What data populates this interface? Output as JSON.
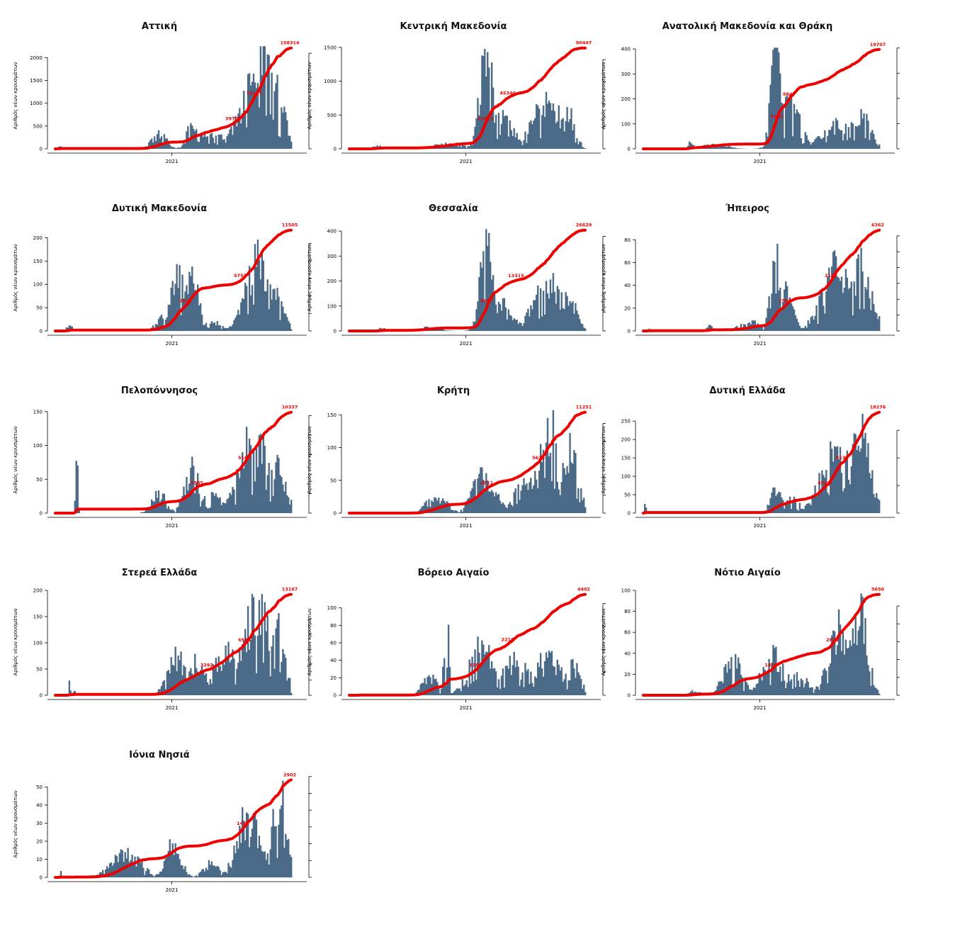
{
  "colors": {
    "bars": "#4a6a88",
    "line": "#ee0000",
    "label": "#ee0000",
    "axis": "#000000"
  },
  "y_left_label": "Αριθμός νέων κρουσμάτων",
  "x_tick_label": "2021",
  "chart_data": [
    {
      "type": "bar",
      "title": "Αττική",
      "cumulative_max": 158314,
      "mid_labels": [
        "39702",
        "79157"
      ],
      "bar_ylim": [
        0,
        2300
      ],
      "bar_yticks": [
        0,
        500,
        1000,
        1500,
        2000
      ],
      "line_yticks": [
        0,
        50000,
        100000,
        150000
      ],
      "shape": "attiki",
      "bar_peak": 2250
    },
    {
      "type": "bar",
      "title": "Κεντρική Μακεδονία",
      "cumulative_max": 90447,
      "mid_labels": [
        "22612",
        "45340"
      ],
      "bar_ylim": [
        0,
        1550
      ],
      "bar_yticks": [
        0,
        500,
        1000,
        1500
      ],
      "line_yticks": [
        0,
        20000,
        40000,
        60000,
        80000
      ],
      "shape": "kmak",
      "bar_peak": 1520
    },
    {
      "type": "bar",
      "title": "Ανατολική Μακεδονία και Θράκη",
      "cumulative_max": 19707,
      "mid_labels": [
        "5419",
        "9847"
      ],
      "bar_ylim": [
        0,
        420
      ],
      "bar_yticks": [
        0,
        100,
        200,
        300,
        400
      ],
      "line_yticks": [
        0,
        5000,
        10000,
        15000,
        20000
      ],
      "shape": "amth",
      "bar_peak": 405
    },
    {
      "type": "bar",
      "title": "Δυτική Μακεδονία",
      "cumulative_max": 11505,
      "mid_labels": [
        "2876",
        "5752"
      ],
      "bar_ylim": [
        0,
        225
      ],
      "bar_yticks": [
        0,
        50,
        100,
        150,
        200
      ],
      "line_yticks": [
        0,
        2000,
        4000,
        6000,
        8000,
        10000
      ],
      "shape": "dmak",
      "bar_peak": 215
    },
    {
      "type": "bar",
      "title": "Θεσσαλία",
      "cumulative_max": 26629,
      "mid_labels": [
        "6657",
        "13315"
      ],
      "bar_ylim": [
        0,
        420
      ],
      "bar_yticks": [
        0,
        100,
        200,
        300,
        400
      ],
      "line_yticks": [
        0,
        5000,
        10000,
        15000,
        20000,
        25000
      ],
      "shape": "thes",
      "bar_peak": 408
    },
    {
      "type": "bar",
      "title": "Ήπειρος",
      "cumulative_max": 6362,
      "mid_labels": [
        "1590",
        "3181"
      ],
      "bar_ylim": [
        0,
        92
      ],
      "bar_yticks": [
        0,
        20,
        40,
        60,
        80
      ],
      "line_yticks": [
        0,
        1000,
        2000,
        3000,
        4000,
        5000,
        6000
      ],
      "shape": "ipir",
      "bar_peak": 92
    },
    {
      "type": "bar",
      "title": "Πελοπόννησος",
      "cumulative_max": 10337,
      "mid_labels": [
        "2585",
        "5169"
      ],
      "bar_ylim": [
        0,
        155
      ],
      "bar_yticks": [
        0,
        50,
        100,
        150
      ],
      "line_yticks": [
        0,
        2000,
        4000,
        6000,
        8000,
        10000
      ],
      "shape": "pelo",
      "bar_peak": 150
    },
    {
      "type": "bar",
      "title": "Κρήτη",
      "cumulative_max": 11251,
      "mid_labels": [
        "2811",
        "5626"
      ],
      "bar_ylim": [
        0,
        160
      ],
      "bar_yticks": [
        0,
        50,
        100,
        150
      ],
      "line_yticks": [
        0,
        2000,
        4000,
        6000,
        8000,
        10000
      ],
      "shape": "krit",
      "bar_peak": 157
    },
    {
      "type": "bar",
      "title": "Δυτική Ελλάδα",
      "cumulative_max": 18276,
      "mid_labels": [
        "4569",
        "9138"
      ],
      "bar_ylim": [
        0,
        285
      ],
      "bar_yticks": [
        0,
        50,
        100,
        150,
        200,
        250
      ],
      "line_yticks": [
        0,
        5000,
        10000,
        15000
      ],
      "shape": "dell",
      "bar_peak": 270
    },
    {
      "type": "bar",
      "title": "Στερεά Ελλάδα",
      "cumulative_max": 13167,
      "mid_labels": [
        "3292",
        "6584"
      ],
      "bar_ylim": [
        0,
        200
      ],
      "bar_yticks": [
        0,
        50,
        100,
        150,
        200
      ],
      "line_yticks": [
        0,
        2000,
        4000,
        6000,
        8000,
        10000
      ],
      "shape": "ster",
      "bar_peak": 193
    },
    {
      "type": "bar",
      "title": "Βόρειο Αιγαίο",
      "cumulative_max": 4402,
      "mid_labels": [
        "1101",
        "2210"
      ],
      "bar_ylim": [
        0,
        120
      ],
      "bar_yticks": [
        0,
        20,
        40,
        60,
        80,
        100
      ],
      "line_yticks": [
        0,
        1000,
        2000,
        3000,
        4000
      ],
      "shape": "vaig",
      "bar_peak": 115
    },
    {
      "type": "bar",
      "title": "Νότιο Αιγαίο",
      "cumulative_max": 5650,
      "mid_labels": [
        "1418",
        "2825"
      ],
      "bar_ylim": [
        0,
        100
      ],
      "bar_yticks": [
        0,
        20,
        40,
        60,
        80,
        100
      ],
      "line_yticks": [
        0,
        1000,
        2000,
        3000,
        4000,
        5000
      ],
      "shape": "naig",
      "bar_peak": 97
    },
    {
      "type": "bar",
      "title": "Ιόνια Νησιά",
      "cumulative_max": 2902,
      "mid_labels": [
        "1451"
      ],
      "bar_ylim": [
        0,
        58
      ],
      "bar_yticks": [
        0,
        10,
        20,
        30,
        40,
        50
      ],
      "line_yticks": [
        0,
        500,
        1000,
        1500,
        2000,
        2500,
        3000
      ],
      "shape": "ionn",
      "bar_peak": 56
    }
  ]
}
